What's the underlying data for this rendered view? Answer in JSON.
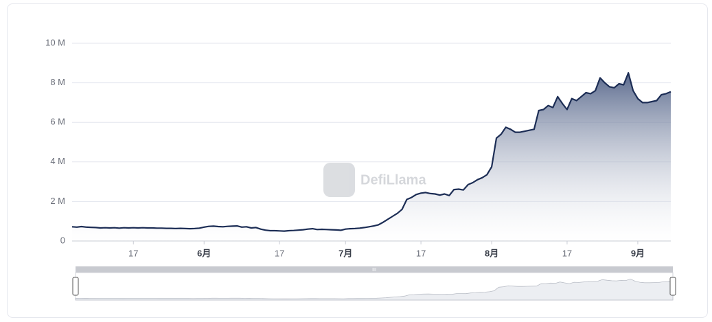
{
  "chart_data": {
    "type": "area",
    "watermark": "DefiLlama",
    "categories": [
      null,
      null,
      null,
      null,
      null,
      null,
      null,
      null,
      null,
      null,
      null,
      null,
      null,
      "17",
      null,
      null,
      null,
      null,
      null,
      null,
      null,
      null,
      null,
      null,
      null,
      null,
      null,
      null,
      "6月",
      null,
      null,
      null,
      null,
      null,
      null,
      null,
      null,
      null,
      null,
      null,
      null,
      null,
      null,
      null,
      "17",
      null,
      null,
      null,
      null,
      null,
      null,
      null,
      null,
      null,
      null,
      null,
      null,
      null,
      "7月",
      null,
      null,
      null,
      null,
      null,
      null,
      null,
      null,
      null,
      null,
      null,
      null,
      null,
      null,
      null,
      "17",
      null,
      null,
      null,
      null,
      null,
      null,
      null,
      null,
      null,
      null,
      null,
      null,
      null,
      null,
      "8月",
      null,
      null,
      null,
      null,
      null,
      null,
      null,
      null,
      null,
      null,
      null,
      null,
      null,
      null,
      null,
      "17",
      null,
      null,
      null,
      null,
      null,
      null,
      null,
      null,
      null,
      null,
      null,
      null,
      null,
      null,
      "9月",
      null,
      null,
      null,
      null,
      null,
      null,
      null
    ],
    "values": [
      0.72,
      0.7,
      0.73,
      0.7,
      0.69,
      0.68,
      0.66,
      0.67,
      0.66,
      0.67,
      0.65,
      0.67,
      0.66,
      0.67,
      0.66,
      0.67,
      0.66,
      0.66,
      0.65,
      0.65,
      0.64,
      0.64,
      0.63,
      0.64,
      0.63,
      0.62,
      0.63,
      0.65,
      0.7,
      0.74,
      0.75,
      0.73,
      0.72,
      0.74,
      0.75,
      0.76,
      0.7,
      0.72,
      0.66,
      0.68,
      0.6,
      0.55,
      0.52,
      0.52,
      0.51,
      0.5,
      0.52,
      0.53,
      0.55,
      0.57,
      0.6,
      0.62,
      0.58,
      0.59,
      0.58,
      0.57,
      0.56,
      0.54,
      0.6,
      0.62,
      0.63,
      0.65,
      0.68,
      0.72,
      0.76,
      0.82,
      0.95,
      1.1,
      1.25,
      1.4,
      1.6,
      2.1,
      2.2,
      2.35,
      2.42,
      2.45,
      2.4,
      2.38,
      2.32,
      2.38,
      2.3,
      2.6,
      2.62,
      2.58,
      2.85,
      2.95,
      3.1,
      3.2,
      3.35,
      3.75,
      5.2,
      5.4,
      5.75,
      5.65,
      5.5,
      5.5,
      5.55,
      5.6,
      5.65,
      6.6,
      6.65,
      6.85,
      6.75,
      7.3,
      6.95,
      6.65,
      7.2,
      7.1,
      7.3,
      7.5,
      7.45,
      7.6,
      8.25,
      8.0,
      7.8,
      7.75,
      7.95,
      7.9,
      8.5,
      7.6,
      7.2,
      7.0,
      7.0,
      7.05,
      7.1,
      7.4,
      7.45,
      7.55
    ],
    "color": "#1c2d55",
    "ylim": [
      0,
      10
    ],
    "yticks": [
      0,
      {
        "value": 2,
        "label": "2 M"
      },
      {
        "value": 4,
        "label": "4 M"
      },
      {
        "value": 6,
        "label": "6 M"
      },
      {
        "value": 8,
        "label": "8 M"
      },
      {
        "value": 10,
        "label": "10 M"
      }
    ],
    "grid": true
  }
}
